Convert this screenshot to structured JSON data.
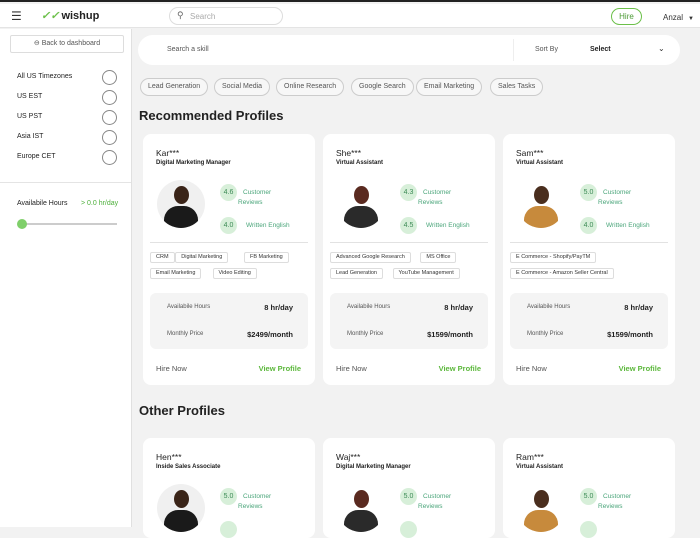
{
  "header": {
    "menu_icon": "hamburger-icon",
    "logo": "wishup",
    "search_placeholder": "Search",
    "hire_label": "Hire",
    "user_name": "Anzal"
  },
  "sidebar": {
    "back_label": "Back to dashboard",
    "timezones": [
      "All US Timezones",
      "US EST",
      "US PST",
      "Asia IST",
      "Europe CET"
    ],
    "hours_label": "Availabile Hours",
    "hours_value": "> 0.0 hr/day",
    "slider_value": 0
  },
  "search": {
    "placeholder": "Search a skill",
    "sort_label": "Sort By",
    "sort_value": "Select"
  },
  "chips": [
    "Lead Generation",
    "Social Media",
    "Online Research",
    "Google Search",
    "Email Marketing",
    "Sales Tasks"
  ],
  "sections": {
    "recommended": "Recommended Profiles",
    "other": "Other Profiles"
  },
  "labels": {
    "customer": "Customer",
    "reviews": "Reviews",
    "written": "Written English",
    "hours": "Availabile Hours",
    "price": "Monthly Price",
    "hire_now": "Hire Now",
    "view_profile": "View Profile"
  },
  "recommended": [
    {
      "name": "Kar***",
      "role": "Digital Marketing Manager",
      "rating": "4.6",
      "english": "4.0",
      "tags": [
        "CRM",
        "Digital Marketing",
        "FB Marketing",
        "Email Marketing",
        "Video Editing"
      ],
      "hours": "8 hr/day",
      "price": "$2499/month"
    },
    {
      "name": "She***",
      "role": "Virtual Assistant",
      "rating": "4.3",
      "english": "4.5",
      "tags": [
        "Advanced Google Research",
        "MS Office",
        "Lead Generation",
        "YouTube Management"
      ],
      "hours": "8 hr/day",
      "price": "$1599/month"
    },
    {
      "name": "Sam***",
      "role": "Virtual Assistant",
      "rating": "5.0",
      "english": "4.0",
      "tags": [
        "E Commerce - Shopify/PayTM",
        "E Commerce - Amazon Seller Central"
      ],
      "hours": "8 hr/day",
      "price": "$1599/month"
    }
  ],
  "other": [
    {
      "name": "Hen***",
      "role": "Inside Sales Associate",
      "rating": "5.0"
    },
    {
      "name": "Waj***",
      "role": "Digital Marketing Manager",
      "rating": "5.0"
    },
    {
      "name": "Ram***",
      "role": "Virtual Assistant",
      "rating": "5.0"
    }
  ]
}
